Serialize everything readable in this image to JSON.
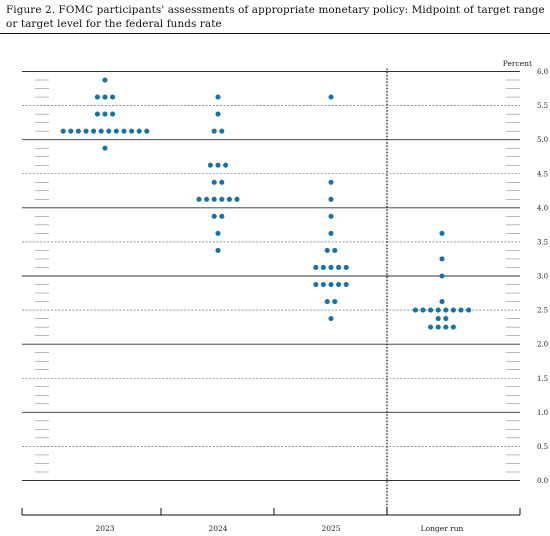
{
  "title": "Figure 2.  FOMC participants' assessments of appropriate monetary policy:  Midpoint of target range or target level for the federal funds rate",
  "chart_data": {
    "type": "scatter",
    "title": "Figure 2.  FOMC participants' assessments of appropriate monetary policy:  Midpoint of target range or target level for the federal funds rate",
    "ylabel": "Percent",
    "xlabel": "",
    "ylim": [
      0,
      6
    ],
    "ytick_step": 0.125,
    "yticks": [
      "0.0",
      "0.5",
      "1.0",
      "1.5",
      "2.0",
      "2.5",
      "3.0",
      "3.5",
      "4.0",
      "4.5",
      "5.0",
      "5.5",
      "6.0"
    ],
    "categories": [
      "2023",
      "2024",
      "2025",
      "Longer run"
    ],
    "dot_color": "#1a73a8",
    "grid": true,
    "dots": [
      {
        "category": "2023",
        "rates": [
          {
            "value": 5.875,
            "count": 1
          },
          {
            "value": 5.625,
            "count": 3
          },
          {
            "value": 5.375,
            "count": 3
          },
          {
            "value": 5.125,
            "count": 12
          },
          {
            "value": 4.875,
            "count": 1
          }
        ]
      },
      {
        "category": "2024",
        "rates": [
          {
            "value": 5.625,
            "count": 1
          },
          {
            "value": 5.375,
            "count": 1
          },
          {
            "value": 5.125,
            "count": 2
          },
          {
            "value": 4.625,
            "count": 3
          },
          {
            "value": 4.375,
            "count": 2
          },
          {
            "value": 4.125,
            "count": 6
          },
          {
            "value": 3.875,
            "count": 2
          },
          {
            "value": 3.625,
            "count": 1
          },
          {
            "value": 3.375,
            "count": 1
          }
        ]
      },
      {
        "category": "2025",
        "rates": [
          {
            "value": 5.625,
            "count": 1
          },
          {
            "value": 4.375,
            "count": 1
          },
          {
            "value": 4.125,
            "count": 1
          },
          {
            "value": 3.875,
            "count": 1
          },
          {
            "value": 3.625,
            "count": 1
          },
          {
            "value": 3.375,
            "count": 2
          },
          {
            "value": 3.125,
            "count": 5
          },
          {
            "value": 2.875,
            "count": 5
          },
          {
            "value": 2.625,
            "count": 2
          },
          {
            "value": 2.375,
            "count": 1
          }
        ]
      },
      {
        "category": "Longer run",
        "rates": [
          {
            "value": 3.625,
            "count": 1
          },
          {
            "value": 3.25,
            "count": 1
          },
          {
            "value": 3.0,
            "count": 1
          },
          {
            "value": 2.625,
            "count": 1
          },
          {
            "value": 2.5,
            "count": 8
          },
          {
            "value": 2.375,
            "count": 2
          },
          {
            "value": 2.25,
            "count": 4
          }
        ]
      }
    ]
  }
}
